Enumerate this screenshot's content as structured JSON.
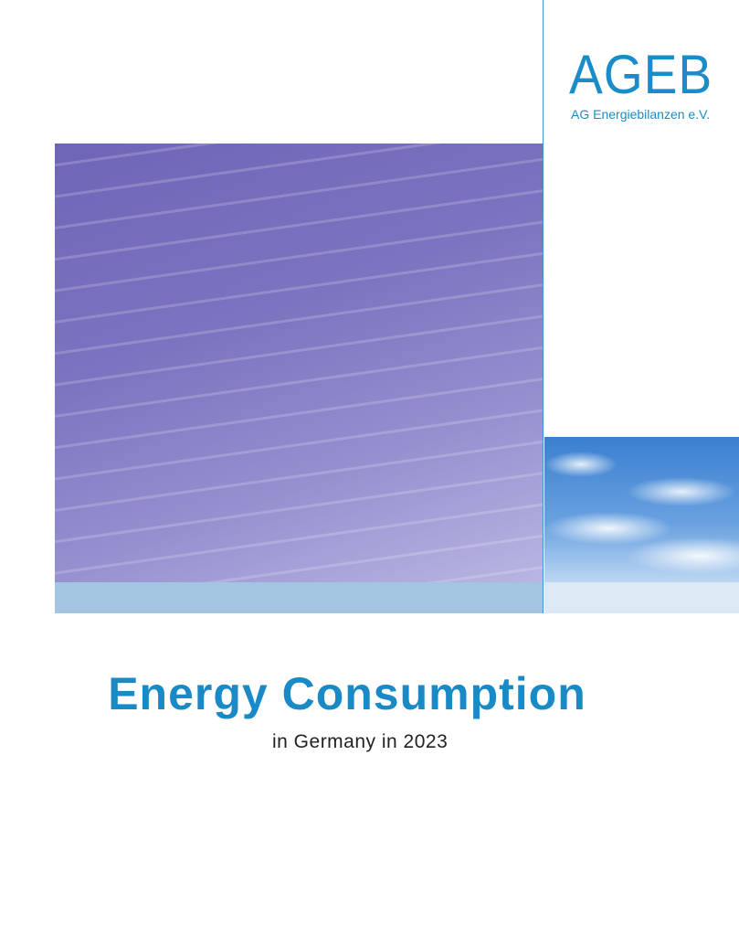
{
  "logo": {
    "name": "AGEB",
    "subtitle": "AG Energiebilanzen e.V."
  },
  "title": "Energy Consumption",
  "subtitle": "in Germany in 2023"
}
